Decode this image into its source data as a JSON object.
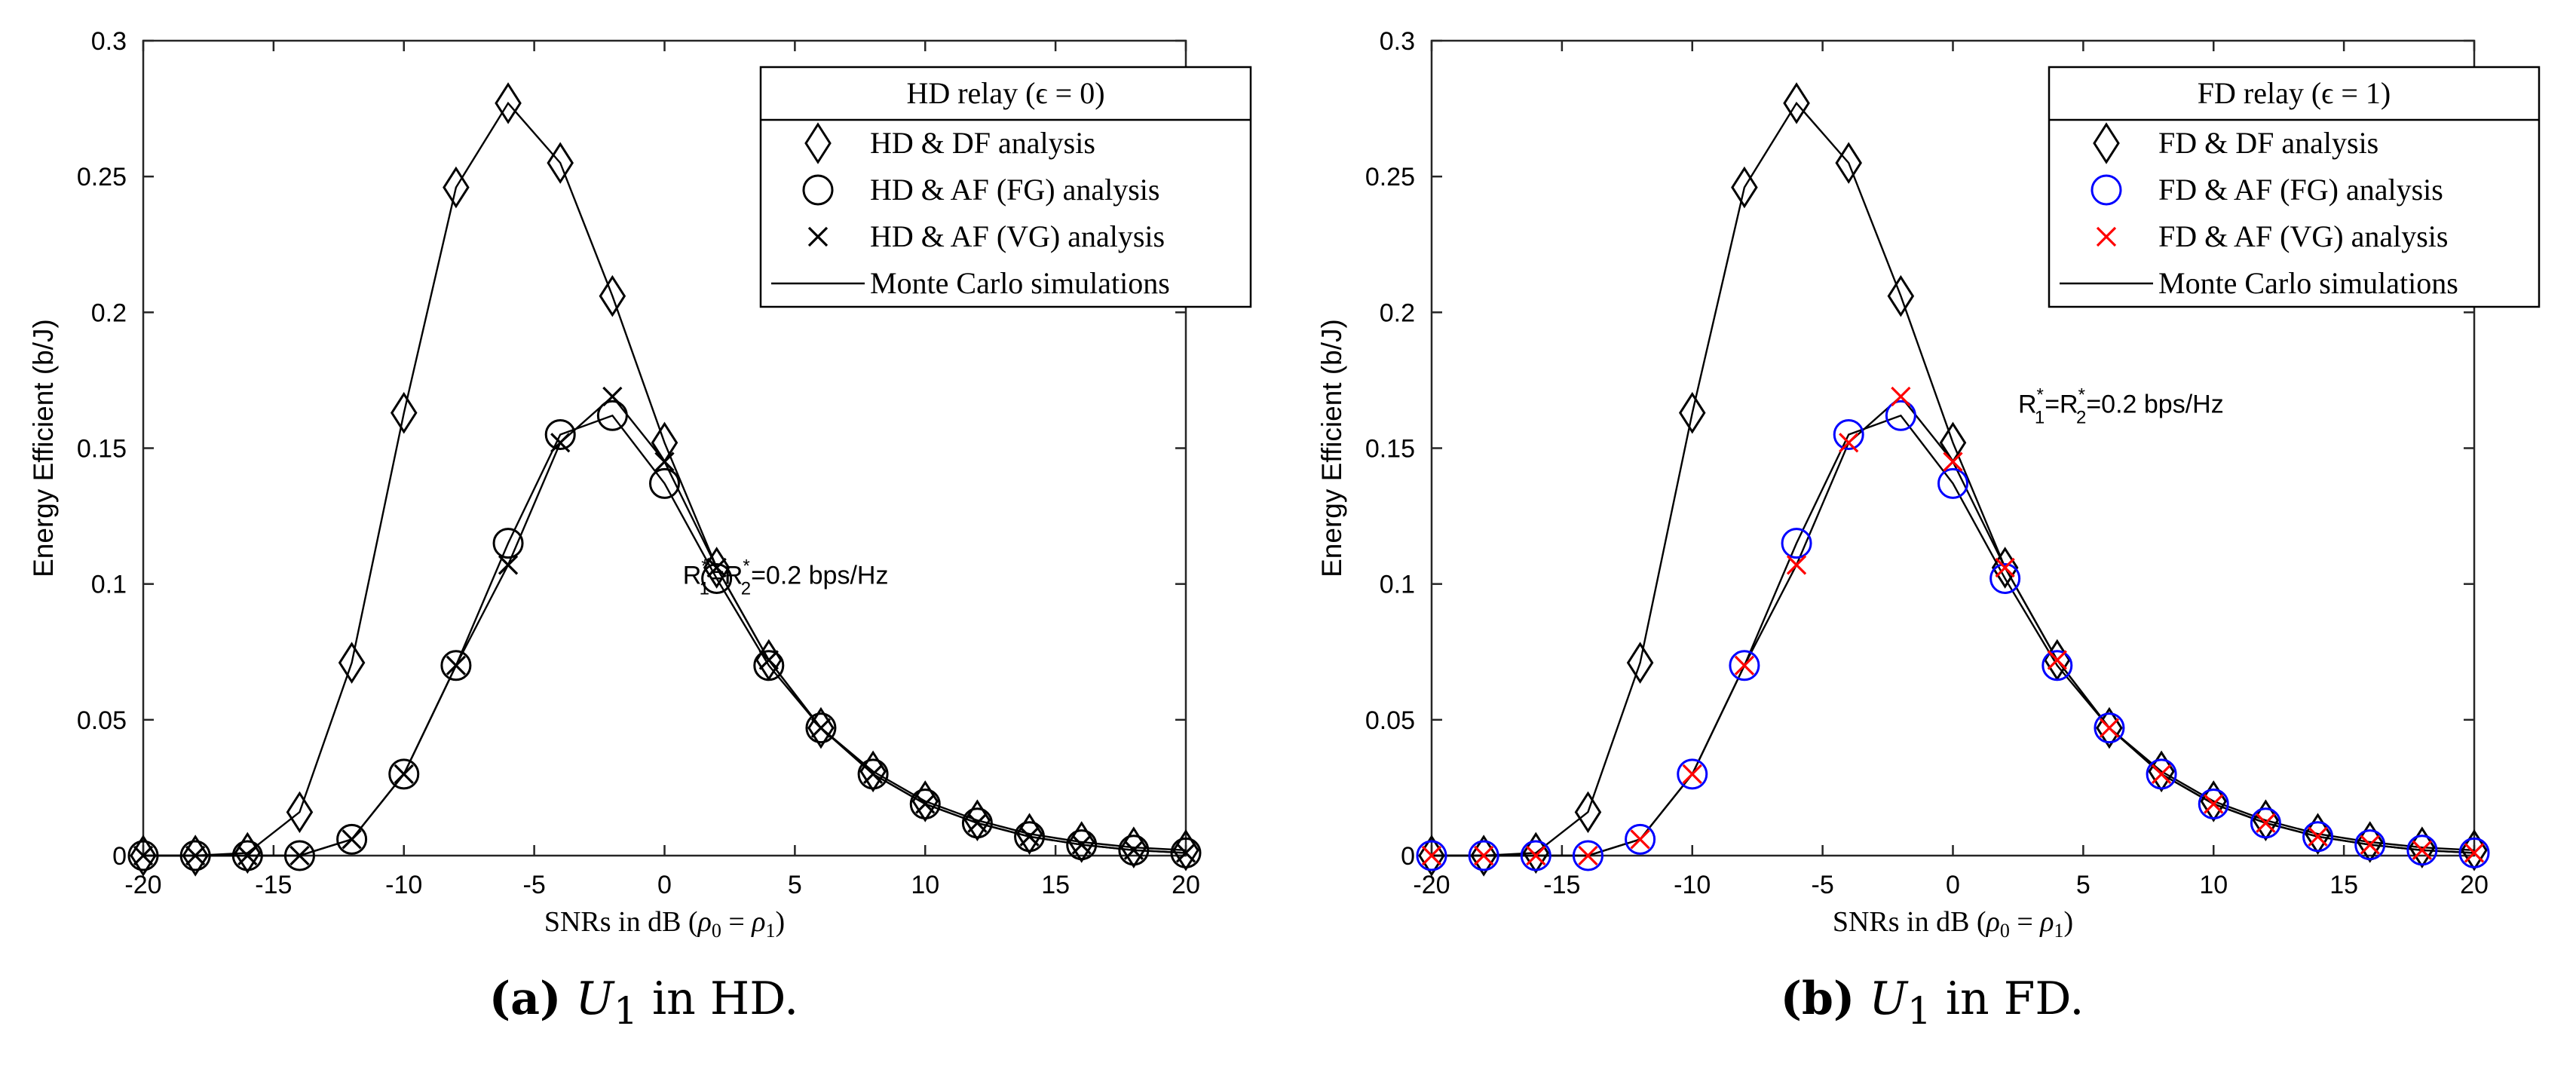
{
  "chart_data": [
    {
      "type": "line",
      "panel_label": "(a)",
      "caption_var": "U",
      "caption_sub": "1",
      "caption_text": " in HD.",
      "ylabel": "Energy Efficient (b/J)",
      "xlabel_prefix": "SNRs in dB (",
      "xlabel_math": "ρ",
      "xlabel_eq": " = ",
      "xlabel_sub0": "0",
      "xlabel_sub1": "1",
      "xlabel_suffix": ")",
      "xlim": [
        -20,
        20
      ],
      "ylim": [
        0,
        0.3
      ],
      "xticks": [
        "-20",
        "-15",
        "-10",
        "-5",
        "0",
        "5",
        "10",
        "15",
        "20"
      ],
      "yticks": [
        "0",
        "0.05",
        "0.1",
        "0.15",
        "0.2",
        "0.25",
        "0.3"
      ],
      "legend_title": "HD relay (ϵ = 0)",
      "annotation": {
        "x": 0.7,
        "y": 0.1,
        "R1": "R",
        "sub1": "1",
        "sup": "*",
        "eq": "=R",
        "sub2": "2",
        "tail": "=0.2 bps/Hz"
      },
      "x": [
        -20,
        -18,
        -16,
        -14,
        -12,
        -10,
        -8,
        -6,
        -4,
        -2,
        0,
        2,
        4,
        6,
        8,
        10,
        12,
        14,
        16,
        18,
        20
      ],
      "series": [
        {
          "name": "HD & DF analysis",
          "marker": "diamond",
          "color": "#000000",
          "values": [
            0,
            0,
            0.001,
            0.016,
            0.071,
            0.163,
            0.246,
            0.277,
            0.255,
            0.206,
            0.152,
            0.106,
            0.072,
            0.047,
            0.031,
            0.02,
            0.013,
            0.008,
            0.005,
            0.003,
            0.002
          ]
        },
        {
          "name": "HD & AF (FG) analysis",
          "marker": "circle",
          "color": "#000000",
          "values": [
            0,
            0,
            0,
            0,
            0.006,
            0.03,
            0.07,
            0.115,
            0.155,
            0.162,
            0.137,
            0.102,
            0.07,
            0.047,
            0.03,
            0.019,
            0.012,
            0.007,
            0.004,
            0.002,
            0.001
          ]
        },
        {
          "name": "HD & AF (VG) analysis",
          "marker": "cross",
          "color": "#000000",
          "values": [
            0,
            0,
            0,
            0,
            0.006,
            0.03,
            0.07,
            0.107,
            0.152,
            0.169,
            0.145,
            0.106,
            0.072,
            0.047,
            0.03,
            0.019,
            0.012,
            0.007,
            0.004,
            0.002,
            0.001
          ]
        }
      ],
      "simulation_label": "Monte Carlo simulations"
    },
    {
      "type": "line",
      "panel_label": "(b)",
      "caption_var": "U",
      "caption_sub": "1",
      "caption_text": " in FD.",
      "ylabel": "Energy Efficient (b/J)",
      "xlabel_prefix": "SNRs in dB (",
      "xlabel_math": "ρ",
      "xlabel_eq": " = ",
      "xlabel_sub0": "0",
      "xlabel_sub1": "1",
      "xlabel_suffix": ")",
      "xlim": [
        -20,
        20
      ],
      "ylim": [
        0,
        0.3
      ],
      "xticks": [
        "-20",
        "-15",
        "-10",
        "-5",
        "0",
        "5",
        "10",
        "15",
        "20"
      ],
      "yticks": [
        "0",
        "0.05",
        "0.1",
        "0.15",
        "0.2",
        "0.25",
        "0.3"
      ],
      "legend_title": "FD relay (ϵ = 1)",
      "annotation": {
        "x": 2.5,
        "y": 0.163,
        "R1": "R",
        "sub1": "1",
        "sup": "*",
        "eq": "=R",
        "sub2": "2",
        "tail": "=0.2 bps/Hz"
      },
      "x": [
        -20,
        -18,
        -16,
        -14,
        -12,
        -10,
        -8,
        -6,
        -4,
        -2,
        0,
        2,
        4,
        6,
        8,
        10,
        12,
        14,
        16,
        18,
        20
      ],
      "series": [
        {
          "name": "FD & DF analysis",
          "marker": "diamond",
          "color": "#000000",
          "values": [
            0,
            0,
            0.001,
            0.016,
            0.071,
            0.163,
            0.246,
            0.277,
            0.255,
            0.206,
            0.152,
            0.106,
            0.072,
            0.047,
            0.031,
            0.02,
            0.013,
            0.008,
            0.005,
            0.003,
            0.002
          ]
        },
        {
          "name": "FD & AF (FG) analysis",
          "marker": "circle",
          "color": "#0000ff",
          "values": [
            0,
            0,
            0,
            0,
            0.006,
            0.03,
            0.07,
            0.115,
            0.155,
            0.162,
            0.137,
            0.102,
            0.07,
            0.047,
            0.03,
            0.019,
            0.012,
            0.007,
            0.004,
            0.002,
            0.001
          ]
        },
        {
          "name": "FD & AF (VG) analysis",
          "marker": "cross",
          "color": "#ff0000",
          "values": [
            0,
            0,
            0,
            0,
            0.006,
            0.03,
            0.07,
            0.107,
            0.152,
            0.169,
            0.145,
            0.106,
            0.072,
            0.047,
            0.03,
            0.019,
            0.012,
            0.007,
            0.004,
            0.002,
            0.001
          ]
        }
      ],
      "simulation_label": "Monte Carlo simulations"
    }
  ]
}
